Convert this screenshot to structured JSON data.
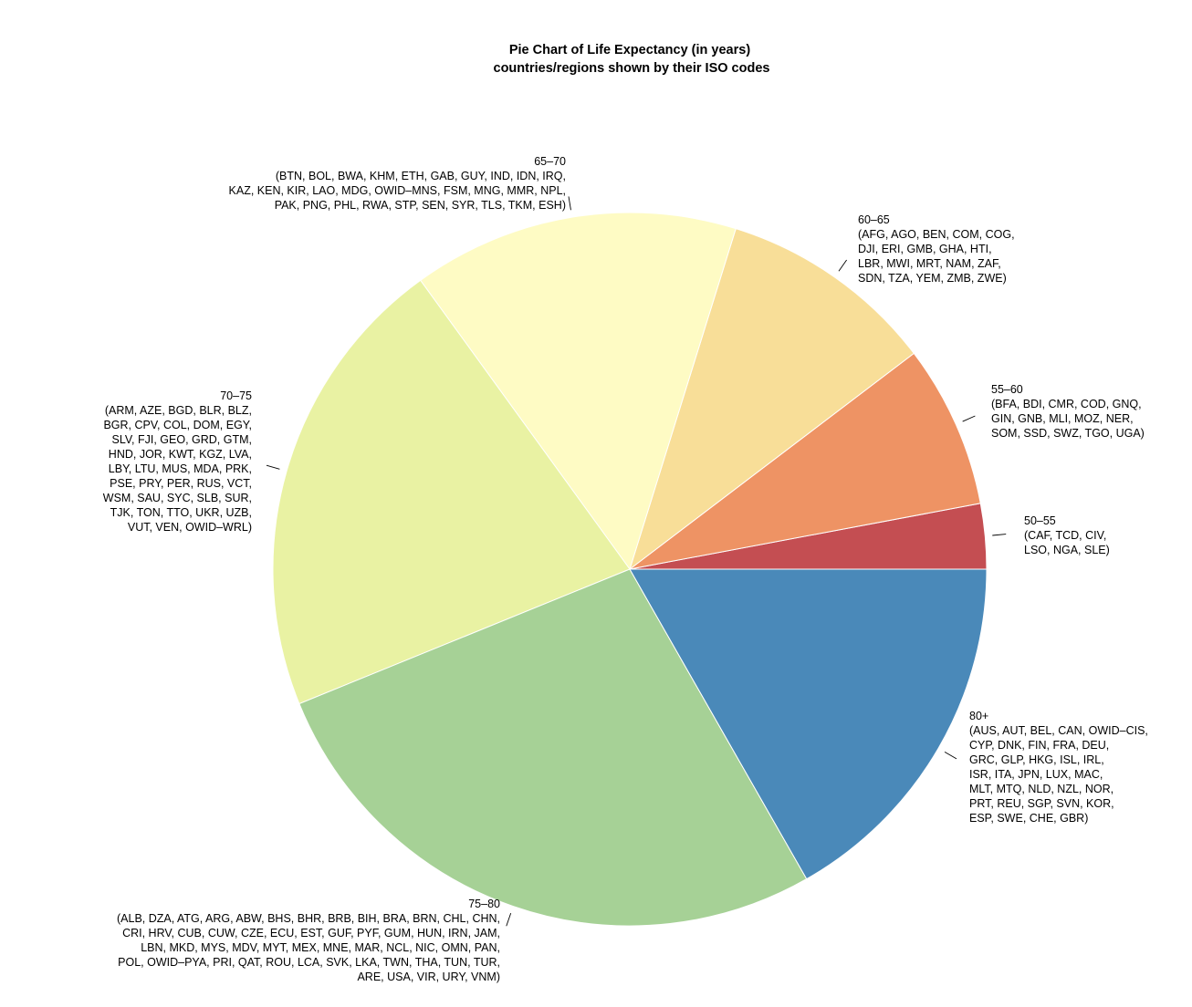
{
  "chart_data": {
    "type": "pie",
    "title": "Pie Chart of Life Expectancy (in years)",
    "subtitle": "countries/regions shown by their ISO codes",
    "start_angle_deg": 0,
    "direction": "counterclockwise",
    "slices": [
      {
        "category": "50–55",
        "members": "(CAF, TCD, CIV, LSO, NGA, SLE)",
        "label_lines": [
          "50–55",
          "(CAF, TCD, CIV,",
          "LSO, NGA, SLE)"
        ],
        "value": 6,
        "color": "#c44e52"
      },
      {
        "category": "55–60",
        "members": "(BFA, BDI, CMR, COD, GNQ, GIN, GNB, MLI, MOZ, NER, SOM, SSD, SWZ, TGO, UGA)",
        "label_lines": [
          "55–60",
          "(BFA, BDI, CMR, COD, GNQ,",
          "GIN, GNB, MLI, MOZ, NER,",
          "SOM, SSD, SWZ, TGO, UGA)"
        ],
        "value": 15,
        "color": "#ee9364"
      },
      {
        "category": "60–65",
        "members": "(AFG, AGO, BEN, COM, COG, DJI, ERI, GMB, GHA, HTI, LBR, MWI, MRT, NAM, ZAF, SDN, TZA, YEM, ZMB, ZWE)",
        "label_lines": [
          "60–65",
          "(AFG, AGO, BEN, COM, COG,",
          "DJI, ERI, GMB, GHA, HTI,",
          "LBR, MWI, MRT, NAM, ZAF,",
          "SDN, TZA, YEM, ZMB, ZWE)"
        ],
        "value": 20,
        "color": "#f8de98"
      },
      {
        "category": "65–70",
        "members": "(BTN, BOL, BWA, KHM, ETH, GAB, GUY, IND, IDN, IRQ, KAZ, KEN, KIR, LAO, MDG, OWID–MNS, FSM, MNG, MMR, NPL, PAK, PNG, PHL, RWA, STP, SEN, SYR, TLS, TKM, ESH)",
        "label_lines": [
          "65–70",
          "(BTN, BOL, BWA, KHM, ETH, GAB, GUY, IND, IDN, IRQ,",
          "KAZ, KEN, KIR, LAO, MDG, OWID–MNS, FSM, MNG, MMR, NPL,",
          "PAK, PNG, PHL, RWA, STP, SEN, SYR, TLS, TKM, ESH)"
        ],
        "value": 30,
        "color": "#fefbc4"
      },
      {
        "category": "70–75",
        "members": "(ARM, AZE, BGD, BLR, BLZ, BGR, CPV, COL, DOM, EGY, SLV, FJI, GEO, GRD, GTM, HND, JOR, KWT, KGZ, LVA, LBY, LTU, MUS, MDA, PRK, PSE, PRY, PER, RUS, VCT, WSM, SAU, SYC, SLB, SUR, TJK, TON, TTO, UKR, UZB, VUT, VEN, OWID–WRL)",
        "label_lines": [
          "70–75",
          "(ARM, AZE, BGD, BLR, BLZ,",
          "BGR, CPV, COL, DOM, EGY,",
          "SLV, FJI, GEO, GRD, GTM,",
          "HND, JOR, KWT, KGZ, LVA,",
          "LBY, LTU, MUS, MDA, PRK,",
          "PSE, PRY, PER, RUS, VCT,",
          "WSM, SAU, SYC, SLB, SUR,",
          "TJK, TON, TTO, UKR, UZB,",
          "VUT, VEN, OWID–WRL)"
        ],
        "value": 43,
        "color": "#e9f2a3"
      },
      {
        "category": "75–80",
        "members": "(ALB, DZA, ATG, ARG, ABW, BHS, BHR, BRB, BIH, BRA, BRN, CHL, CHN, CRI, HRV, CUB, CUW, CZE, ECU, EST, GUF, PYF, GUM, HUN, IRN, JAM, LBN, MKD, MYS, MDV, MYT, MEX, MNE, MAR, NCL, NIC, OMN, PAN, POL, OWID–PYA, PRI, QAT, ROU, LCA, SVK, LKA, TWN, THA, TUN, TUR, ARE, USA, VIR, URY, VNM)",
        "label_lines": [
          "75–80",
          "(ALB, DZA, ATG, ARG, ABW, BHS, BHR, BRB, BIH, BRA, BRN, CHL, CHN,",
          "CRI, HRV, CUB, CUW, CZE, ECU, EST, GUF, PYF, GUM, HUN, IRN, JAM,",
          "LBN, MKD, MYS, MDV, MYT, MEX, MNE, MAR, NCL, NIC, OMN, PAN,",
          "POL, OWID–PYA, PRI, QAT, ROU, LCA, SVK, LKA, TWN, THA, TUN, TUR,",
          "ARE, USA, VIR, URY, VNM)"
        ],
        "value": 55,
        "color": "#a6d196"
      },
      {
        "category": "80+",
        "members": "(AUS, AUT, BEL, CAN, OWID–CIS, CYP, DNK, FIN, FRA, DEU, GRC, GLP, HKG, ISL, IRL, ISR, ITA, JPN, LUX, MAC, MLT, MTQ, NLD, NZL, NOR, PRT, REU, SGP, SVN, KOR, ESP, SWE, CHE, GBR)",
        "label_lines": [
          "80+",
          "(AUS, AUT, BEL, CAN, OWID–CIS,",
          "CYP, DNK, FIN, FRA, DEU,",
          "GRC, GLP, HKG, ISL, IRL,",
          "ISR, ITA, JPN, LUX, MAC,",
          "MLT, MTQ, NLD, NZL, NOR,",
          "PRT, REU, SGP, SVN, KOR,",
          "ESP, SWE, CHE, GBR)"
        ],
        "value": 34,
        "color": "#4a89b9"
      }
    ]
  }
}
